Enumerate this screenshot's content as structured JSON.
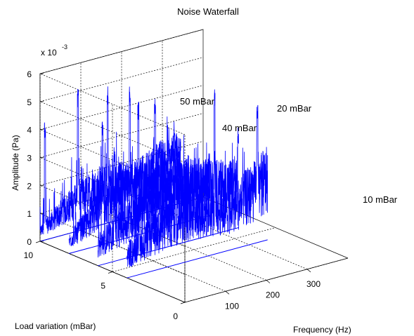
{
  "chart_data": {
    "type": "line",
    "title": "Noise Waterfall",
    "xlabel": "Frequency (Hz)",
    "ylabel": "Load variation (mBar)",
    "zlabel": "Amplitude (Pa)",
    "z_exponent_label": "x 10",
    "z_exponent": "-3",
    "xlim": [
      0,
      400
    ],
    "ylim": [
      0,
      10
    ],
    "zlim": [
      0,
      6
    ],
    "x_ticks": [
      "100",
      "200",
      "300"
    ],
    "x_tick_values": [
      100,
      200,
      300
    ],
    "y_ticks": [
      "0",
      "5",
      "10"
    ],
    "y_tick_values": [
      0,
      5,
      10
    ],
    "z_ticks": [
      "0",
      "1",
      "2",
      "3",
      "4",
      "5",
      "6"
    ],
    "z_tick_values": [
      0,
      1,
      2,
      3,
      4,
      5,
      6
    ],
    "grid": true,
    "series_color": "#0000ff",
    "annotations": [
      "50 mBar",
      "40 mBar",
      "20 mBar",
      "10 mBar"
    ],
    "series": [
      {
        "load": 10,
        "peaks": [
          [
            12,
            4.3
          ],
          [
            93,
            5.2
          ],
          [
            166,
            4.9
          ],
          [
            220,
            4.7
          ],
          [
            282,
            4.0
          ]
        ],
        "floor": [
          [
            0,
            0.4
          ],
          [
            80,
            1.2
          ],
          [
            160,
            1.6
          ],
          [
            240,
            1.4
          ],
          [
            300,
            1.8
          ]
        ]
      },
      {
        "load": 8,
        "peaks": [
          [
            82,
            4.4
          ],
          [
            170,
            4.8
          ],
          [
            258,
            3.7
          ]
        ],
        "floor": [
          [
            0,
            0.5
          ],
          [
            90,
            1.6
          ],
          [
            180,
            1.9
          ],
          [
            300,
            1.6
          ]
        ]
      },
      {
        "load": 6,
        "peaks": [
          [
            40,
            4.1
          ],
          [
            190,
            4.0
          ],
          [
            286,
            5.2
          ],
          [
            344,
            3.4
          ]
        ],
        "floor": [
          [
            0,
            0.8
          ],
          [
            120,
            2.0
          ],
          [
            240,
            2.0
          ],
          [
            340,
            1.8
          ]
        ]
      },
      {
        "load": 4,
        "peaks": [
          [
            30,
            3.0
          ],
          [
            120,
            3.8
          ],
          [
            216,
            3.7
          ],
          [
            320,
            5.0
          ]
        ],
        "floor": [
          [
            0,
            0.9
          ],
          [
            140,
            2.1
          ],
          [
            250,
            1.6
          ],
          [
            345,
            2.4
          ]
        ]
      }
    ]
  }
}
